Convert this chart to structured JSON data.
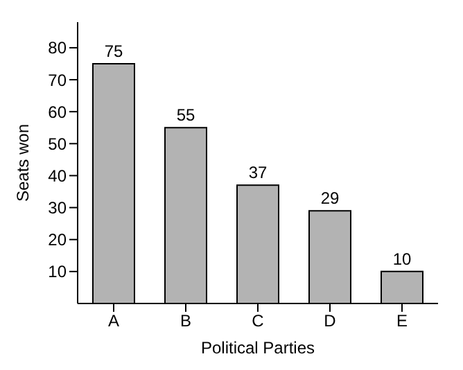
{
  "chart_data": {
    "type": "bar",
    "xlabel": "Political Parties",
    "ylabel": "Seats won",
    "categories": [
      "A",
      "B",
      "C",
      "D",
      "E"
    ],
    "values": [
      75,
      55,
      37,
      29,
      10
    ],
    "color": "#b3b3b3",
    "data_labels": true,
    "ylim": [
      0,
      88
    ],
    "yticks": [
      10,
      20,
      30,
      40,
      50,
      60,
      70,
      80
    ],
    "grid": false
  }
}
